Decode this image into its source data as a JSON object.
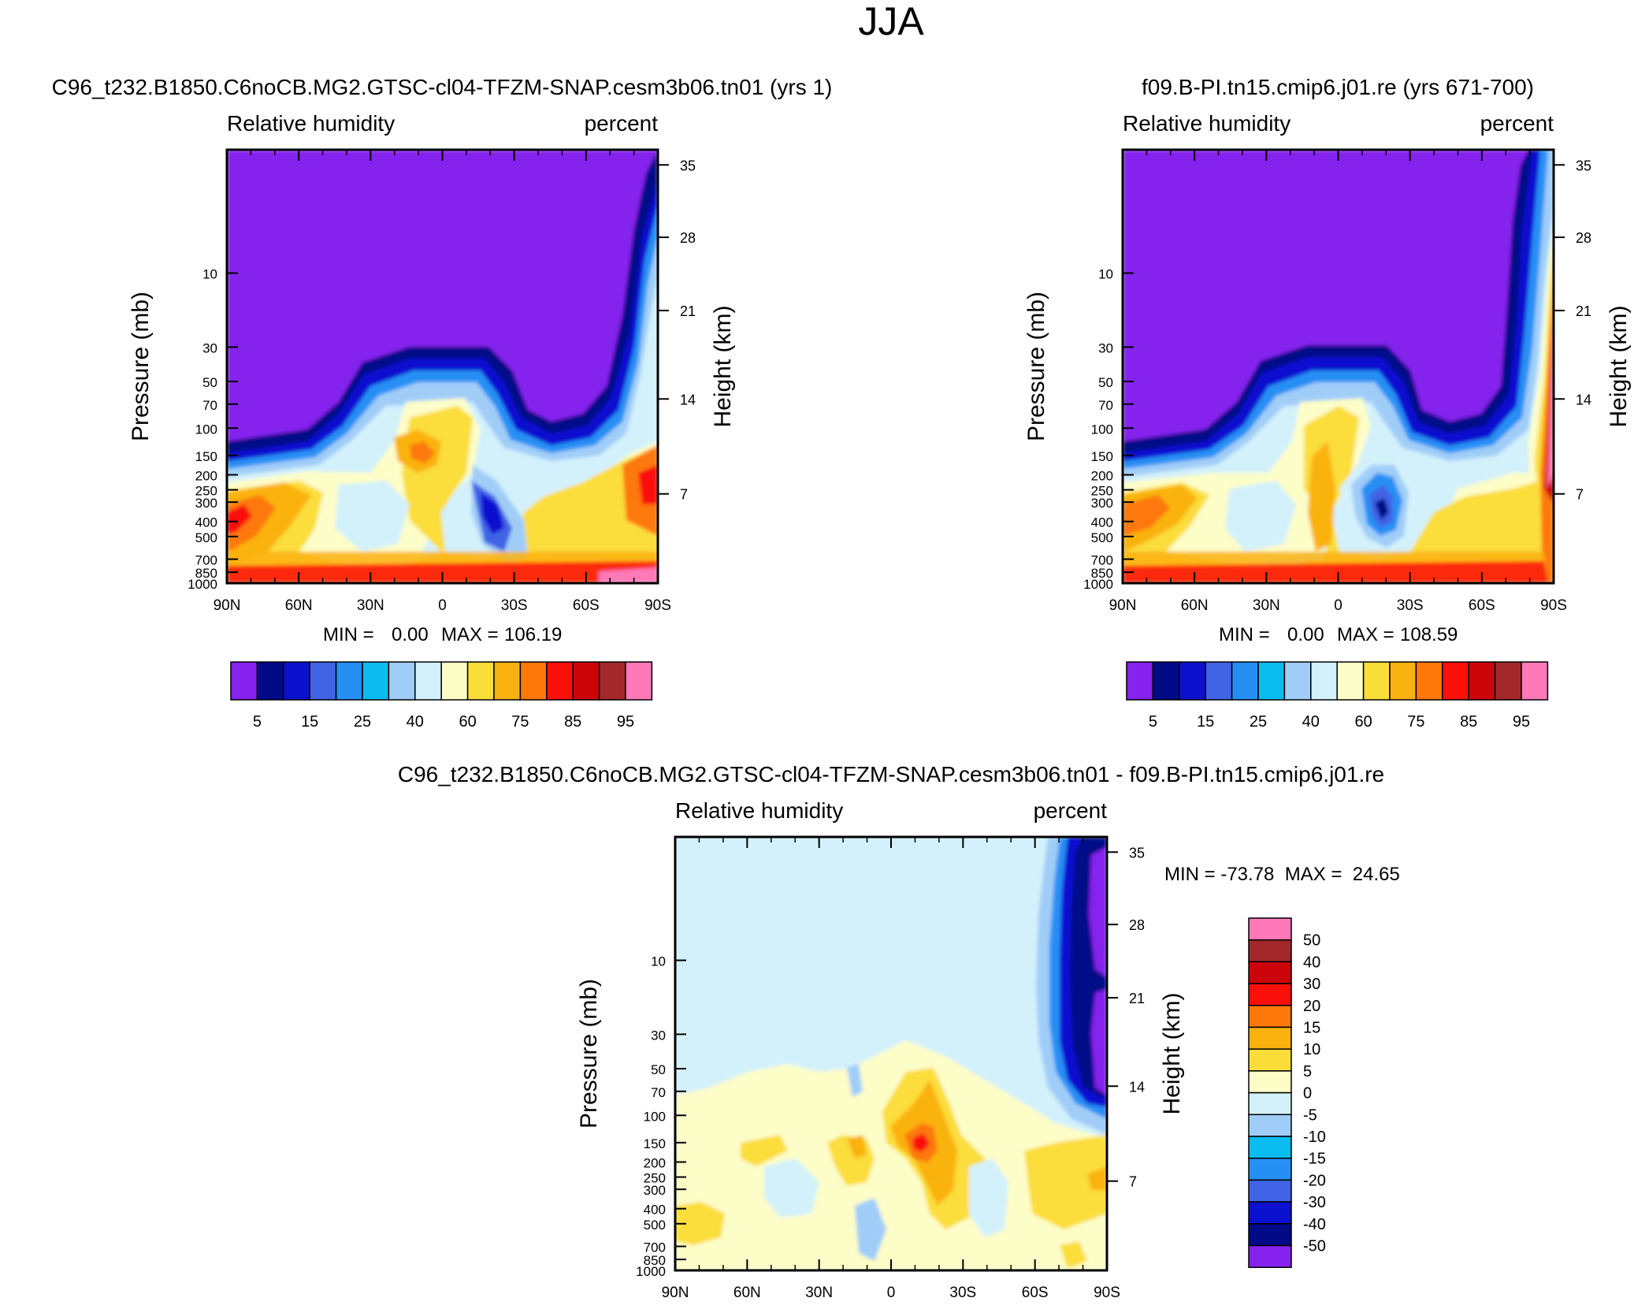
{
  "figure_title": "JJA",
  "colors": {
    "rh_fill": [
      "#8522ee",
      "#020a88",
      "#0c11d0",
      "#4163e6",
      "#258ff4",
      "#0bbcf0",
      "#a0cdf8",
      "#d3f1fb",
      "#fdfdc8",
      "#fbdd3a",
      "#fab20e",
      "#fd7808",
      "#fb0f0b",
      "#cd050a",
      "#a3282b",
      "#fd79b8"
    ],
    "diff_fill": [
      "#8522ee",
      "#020a88",
      "#0c11d0",
      "#4163e6",
      "#258ff4",
      "#0bbcf0",
      "#a0cdf8",
      "#d3f1fb",
      "#fdfdc8",
      "#fbdd3a",
      "#fab20e",
      "#fd7808",
      "#fb0f0b",
      "#cd050a",
      "#a3282b",
      "#fd79b8"
    ]
  },
  "chart_data": [
    {
      "type": "contour",
      "id": "model",
      "title": "C96_t232.B1850.C6noCB.MG2.GTSC-cl04-TFZM-SNAP.cesm3b06.tn01 (yrs 1)",
      "left_label": "Relative humidity",
      "right_label": "percent",
      "ylabel": "Pressure (mb)",
      "ylabel_right": "Height (km)",
      "x_ticks": [
        "90N",
        "60N",
        "30N",
        "0",
        "30S",
        "60S",
        "90S"
      ],
      "y_ticks": [
        "10",
        "30",
        "50",
        "70",
        "100",
        "150",
        "200",
        "250",
        "300",
        "400",
        "500",
        "700",
        "850",
        "1000"
      ],
      "height_ticks": [
        "35",
        "28",
        "21",
        "14",
        "7"
      ],
      "min_label": "MIN =",
      "min_value": "0.00",
      "max_label": "MAX =",
      "max_value": "106.19",
      "min": 0.0,
      "max": 106.19,
      "levels": [
        5,
        10,
        15,
        20,
        25,
        30,
        40,
        50,
        60,
        70,
        75,
        80,
        85,
        90,
        95
      ],
      "colorbar_labels": [
        "5",
        "15",
        "25",
        "40",
        "60",
        "75",
        "85",
        "95"
      ]
    },
    {
      "type": "contour",
      "id": "reference",
      "title": "f09.B-PI.tn15.cmip6.j01.re (yrs 671-700)",
      "left_label": "Relative humidity",
      "right_label": "percent",
      "ylabel": "Pressure (mb)",
      "ylabel_right": "Height (km)",
      "x_ticks": [
        "90N",
        "60N",
        "30N",
        "0",
        "30S",
        "60S",
        "90S"
      ],
      "y_ticks": [
        "10",
        "30",
        "50",
        "70",
        "100",
        "150",
        "200",
        "250",
        "300",
        "400",
        "500",
        "700",
        "850",
        "1000"
      ],
      "height_ticks": [
        "35",
        "28",
        "21",
        "14",
        "7"
      ],
      "min_label": "MIN =",
      "min_value": "0.00",
      "max_label": "MAX =",
      "max_value": "108.59",
      "min": 0.0,
      "max": 108.59,
      "levels": [
        5,
        10,
        15,
        20,
        25,
        30,
        40,
        50,
        60,
        70,
        75,
        80,
        85,
        90,
        95
      ],
      "colorbar_labels": [
        "5",
        "15",
        "25",
        "40",
        "60",
        "75",
        "85",
        "95"
      ]
    },
    {
      "type": "contour",
      "id": "difference",
      "title": "C96_t232.B1850.C6noCB.MG2.GTSC-cl04-TFZM-SNAP.cesm3b06.tn01 - f09.B-PI.tn15.cmip6.j01.re",
      "left_label": "Relative humidity",
      "right_label": "percent",
      "ylabel": "Pressure (mb)",
      "ylabel_right": "Height (km)",
      "x_ticks": [
        "90N",
        "60N",
        "30N",
        "0",
        "30S",
        "60S",
        "90S"
      ],
      "y_ticks": [
        "10",
        "30",
        "50",
        "70",
        "100",
        "150",
        "200",
        "250",
        "300",
        "400",
        "500",
        "700",
        "850",
        "1000"
      ],
      "height_ticks": [
        "35",
        "28",
        "21",
        "14",
        "7"
      ],
      "minmax_text": "MIN = -73.78  MAX =  24.65",
      "min": -73.78,
      "max": 24.65,
      "levels": [
        -50,
        -40,
        -30,
        -20,
        -15,
        -10,
        -5,
        0,
        5,
        10,
        15,
        20,
        30,
        40,
        50
      ],
      "colorbar_labels": [
        "50",
        "40",
        "30",
        "20",
        "15",
        "10",
        "5",
        "0",
        "-5",
        "-10",
        "-15",
        "-20",
        "-30",
        "-40",
        "-50"
      ]
    }
  ]
}
